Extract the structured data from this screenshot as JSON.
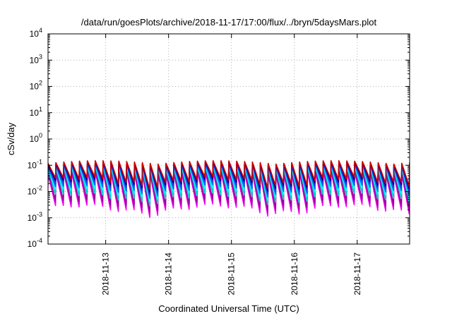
{
  "chart_data": {
    "type": "line",
    "title": "/data/run/goesPlots/archive/2018-11-17/17:00/flux/../bryn/5daysMars.plot",
    "xlabel": "Coordinated Universal Time (UTC)",
    "ylabel": "cSv/day",
    "yscale": "log",
    "ylim": [
      0.0001,
      10000
    ],
    "y_ticks": [
      {
        "value": 0.0001,
        "base": "10",
        "exp": "-4"
      },
      {
        "value": 0.001,
        "base": "10",
        "exp": "-3"
      },
      {
        "value": 0.01,
        "base": "10",
        "exp": "-2"
      },
      {
        "value": 0.1,
        "base": "10",
        "exp": "-1"
      },
      {
        "value": 1,
        "base": "10",
        "exp": "0"
      },
      {
        "value": 10,
        "base": "10",
        "exp": "1"
      },
      {
        "value": 100,
        "base": "10",
        "exp": "2"
      },
      {
        "value": 1000,
        "base": "10",
        "exp": "3"
      },
      {
        "value": 10000,
        "base": "10",
        "exp": "4"
      }
    ],
    "xlim": [
      "2018-11-12 02:00",
      "2018-11-17 20:00"
    ],
    "x_ticks": [
      "2018-11-13",
      "2018-11-14",
      "2018-11-15",
      "2018-11-16",
      "2018-11-17"
    ],
    "grid": true,
    "legend": "none",
    "sawtooth_period_hours": 3,
    "series": [
      {
        "color": "#ff00ff",
        "peak": 0.05,
        "trough": 0.0022
      },
      {
        "color": "#cc00cc",
        "peak": 0.055,
        "trough": 0.0028
      },
      {
        "color": "#990099",
        "peak": 0.065,
        "trough": 0.0035
      },
      {
        "color": "#00cccc",
        "peak": 0.08,
        "trough": 0.006
      },
      {
        "color": "#00ffff",
        "peak": 0.09,
        "trough": 0.009
      },
      {
        "color": "#0066ff",
        "peak": 0.1,
        "trough": 0.012
      },
      {
        "color": "#3333cc",
        "peak": 0.11,
        "trough": 0.016
      },
      {
        "color": "#000099",
        "peak": 0.12,
        "trough": 0.02
      },
      {
        "color": "#cc0000",
        "peak": 0.13,
        "trough": 0.025
      }
    ]
  }
}
